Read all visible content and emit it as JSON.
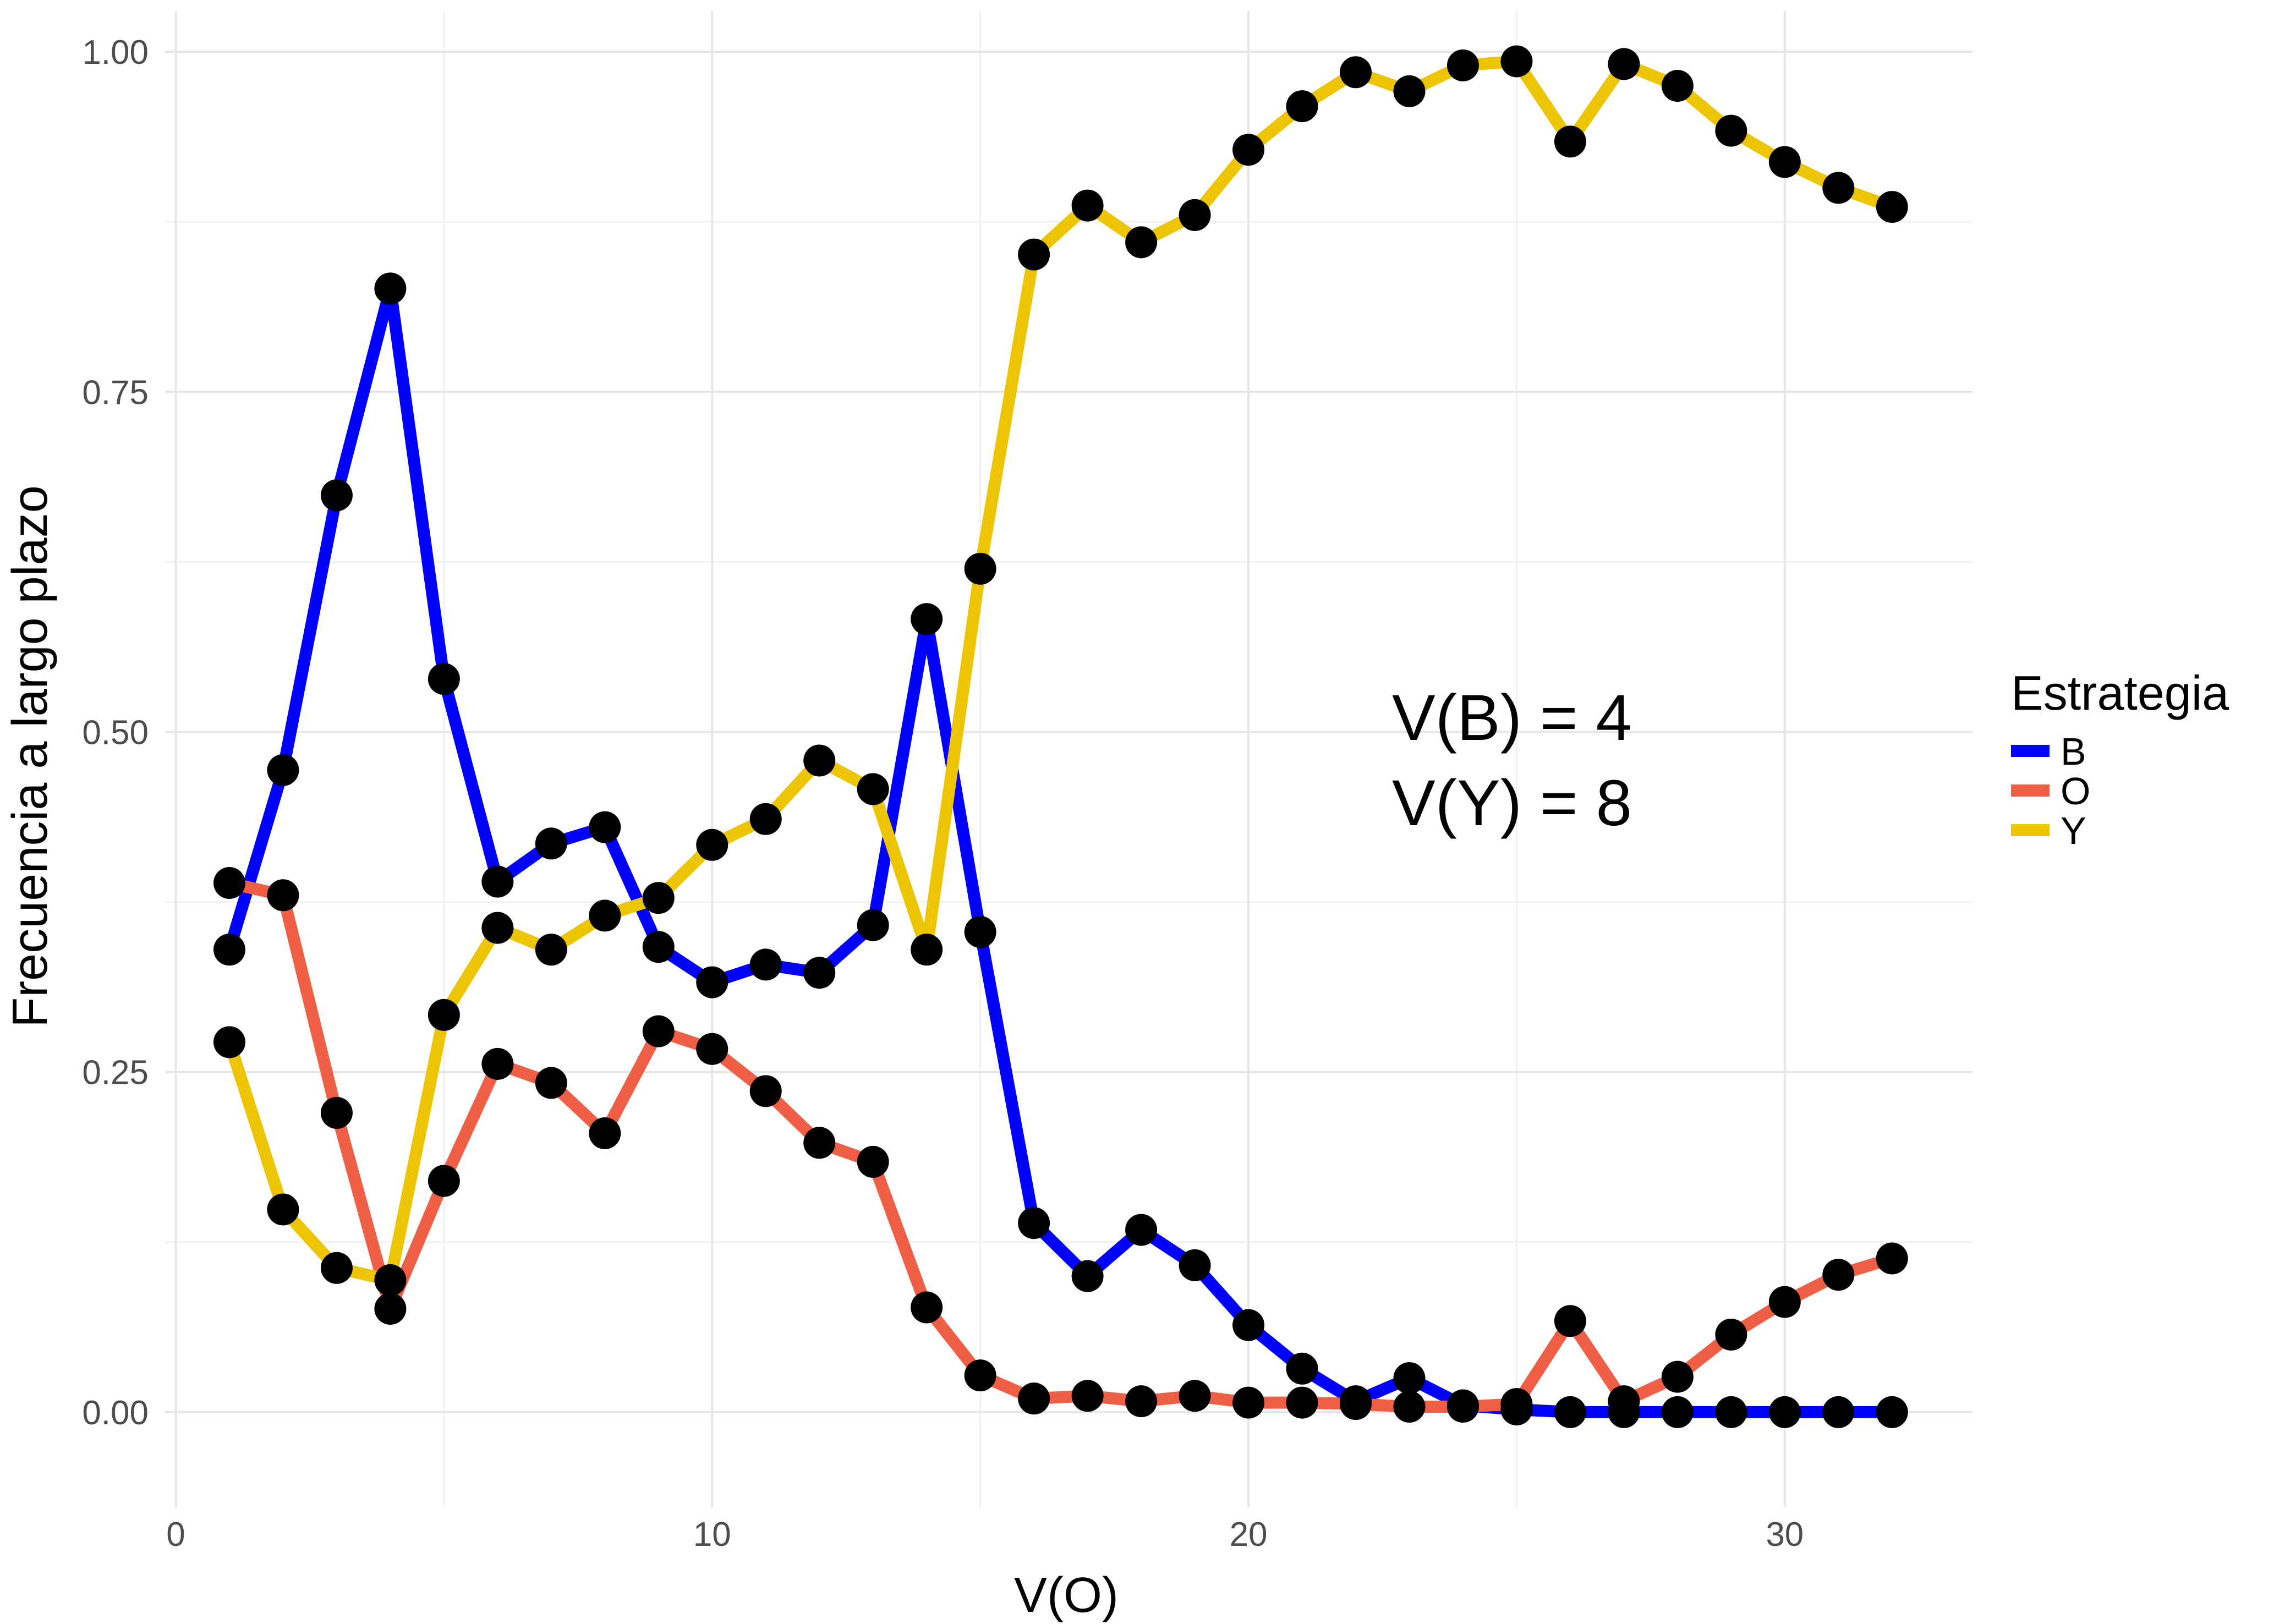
{
  "chart_data": {
    "type": "line",
    "xlabel": "V(O)",
    "ylabel": "Frecuencia a largo plazo",
    "xlim": [
      -0.2,
      33.5
    ],
    "ylim": [
      -0.07,
      1.03
    ],
    "x_ticks": [
      0,
      10,
      20,
      30
    ],
    "x_tick_labels": [
      "0",
      "10",
      "20",
      "30"
    ],
    "y_ticks": [
      0,
      0.25,
      0.5,
      0.75,
      1.0
    ],
    "y_tick_labels": [
      "0.00",
      "0.25",
      "0.50",
      "0.75",
      "1.00"
    ],
    "y_minor_ticks": [
      0.125,
      0.375,
      0.625,
      0.875
    ],
    "x_minor_ticks": [
      5,
      15,
      25
    ],
    "grid": true,
    "legend": {
      "title": "Estrategia",
      "position": "right"
    },
    "x": [
      1,
      2,
      3,
      4,
      5,
      6,
      7,
      8,
      9,
      10,
      11,
      12,
      13,
      14,
      15,
      16,
      17,
      18,
      19,
      20,
      21,
      22,
      23,
      24,
      25,
      26,
      27,
      28,
      29,
      30,
      31,
      32
    ],
    "series": [
      {
        "name": "B",
        "color": "#0000ff",
        "values": [
          0.34,
          0.472,
          0.674,
          0.826,
          0.539,
          0.39,
          0.418,
          0.43,
          0.342,
          0.316,
          0.329,
          0.323,
          0.358,
          0.583,
          0.353,
          0.139,
          0.1,
          0.134,
          0.108,
          0.064,
          0.032,
          0.008,
          0.025,
          0.005,
          0.002,
          0.0,
          0.0,
          0.0,
          0.0,
          0.0,
          0.0,
          0.0
        ]
      },
      {
        "name": "O",
        "color": "#ee5f45",
        "values": [
          0.389,
          0.38,
          0.22,
          0.076,
          0.17,
          0.256,
          0.242,
          0.205,
          0.28,
          0.267,
          0.236,
          0.198,
          0.184,
          0.077,
          0.027,
          0.01,
          0.012,
          0.008,
          0.012,
          0.007,
          0.007,
          0.006,
          0.004,
          0.004,
          0.006,
          0.067,
          0.008,
          0.026,
          0.057,
          0.081,
          0.101,
          0.113
        ]
      },
      {
        "name": "Y",
        "color": "#ecc400",
        "values": [
          0.272,
          0.149,
          0.106,
          0.097,
          0.292,
          0.356,
          0.34,
          0.365,
          0.378,
          0.417,
          0.436,
          0.479,
          0.458,
          0.34,
          0.62,
          0.851,
          0.887,
          0.86,
          0.88,
          0.928,
          0.96,
          0.985,
          0.971,
          0.99,
          0.993,
          0.934,
          0.991,
          0.975,
          0.942,
          0.919,
          0.9,
          0.886
        ]
      }
    ],
    "point_color": "#000000",
    "annotations": [
      "V(B) = 4",
      "V(Y) = 8"
    ],
    "annotation_position": "right-middle"
  }
}
